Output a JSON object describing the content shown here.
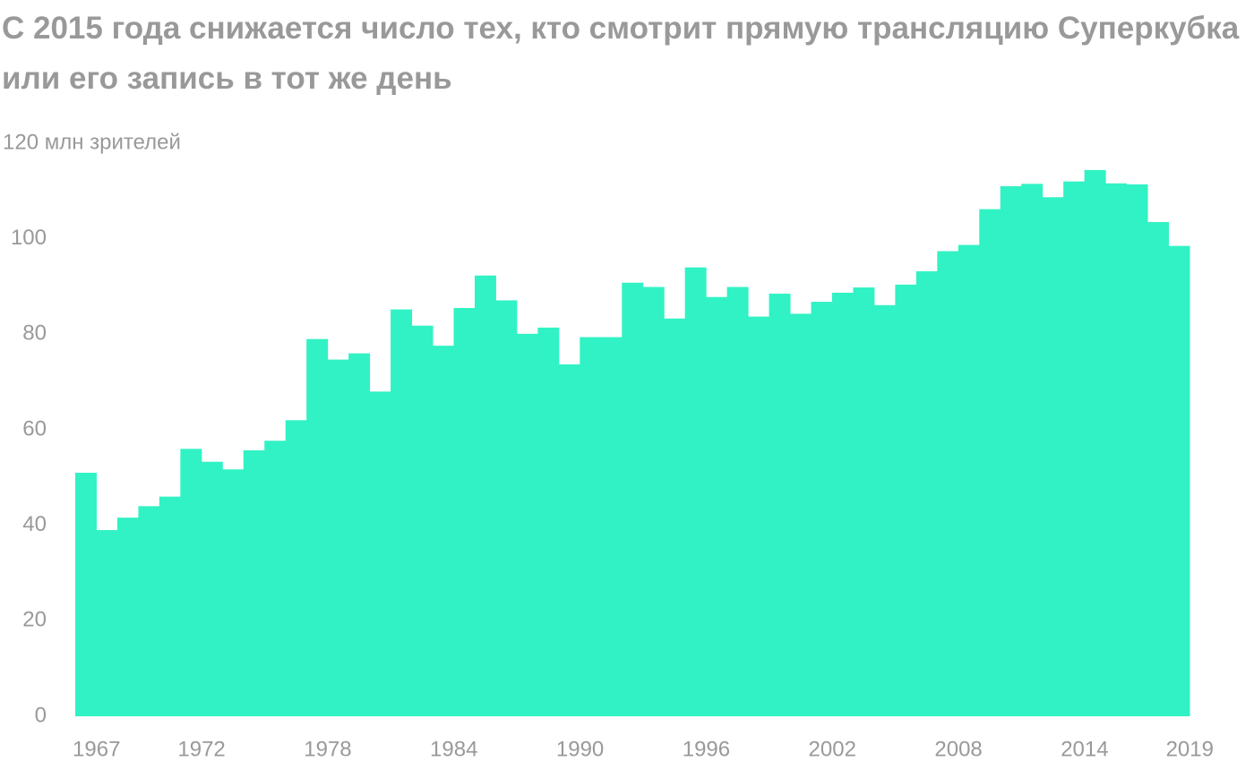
{
  "chart_data": {
    "type": "bar",
    "title": "С 2015 года снижается число тех, кто смотрит прямую трансляцию Суперкубка или его запись в тот же день",
    "x": [
      1967,
      1968,
      1969,
      1970,
      1971,
      1972,
      1973,
      1974,
      1975,
      1976,
      1977,
      1978,
      1979,
      1980,
      1981,
      1982,
      1983,
      1984,
      1985,
      1986,
      1987,
      1988,
      1989,
      1990,
      1991,
      1992,
      1993,
      1994,
      1995,
      1996,
      1997,
      1998,
      1999,
      2000,
      2001,
      2002,
      2003,
      2004,
      2005,
      2006,
      2007,
      2008,
      2009,
      2010,
      2011,
      2012,
      2013,
      2014,
      2015,
      2016,
      2017,
      2018,
      2019
    ],
    "values": [
      51,
      39,
      41.6,
      44,
      46,
      56,
      53.3,
      51.7,
      55.7,
      57.7,
      62,
      79,
      74.7,
      76,
      68,
      85.2,
      81.8,
      77.6,
      85.5,
      92.3,
      87.1,
      80.1,
      81.4,
      73.7,
      79.4,
      79.4,
      90.8,
      89.9,
      83.3,
      94,
      87.8,
      89.9,
      83.7,
      88.5,
      84.3,
      86.8,
      88.7,
      89.8,
      86.1,
      90.4,
      93.2,
      97.4,
      98.7,
      106.2,
      111,
      111.5,
      108.7,
      112,
      114.4,
      111.6,
      111.4,
      103.5,
      98.5
    ],
    "color": "#31f2c4",
    "xlim": [
      1966.5,
      2019.5
    ],
    "xticks": [
      1967,
      1972,
      1978,
      1984,
      1990,
      1996,
      2002,
      2008,
      2014,
      2019
    ],
    "ylim": [
      0,
      120
    ],
    "yticks": [
      0,
      20,
      40,
      60,
      80,
      100,
      {
        "value": 120,
        "label": "120 млн зрителей"
      }
    ],
    "grid": false
  }
}
